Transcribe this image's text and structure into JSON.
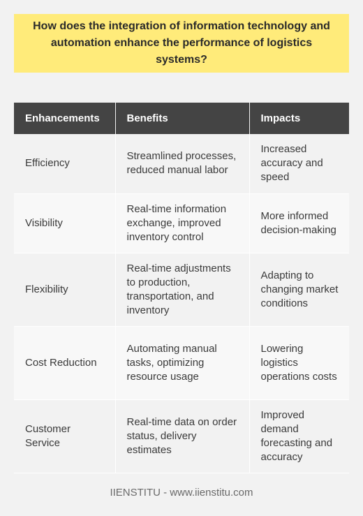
{
  "question": "How does the integration of information technology and automation enhance the performance of logistics systems?",
  "table": {
    "headers": [
      "Enhancements",
      "Benefits",
      "Impacts"
    ],
    "rows": [
      [
        "Efficiency",
        "Streamlined processes, reduced manual labor",
        "Increased accuracy and speed"
      ],
      [
        "Visibility",
        "Real-time information exchange, improved inventory control",
        "More informed decision-making"
      ],
      [
        "Flexibility",
        "Real-time adjustments to production, transportation, and inventory",
        "Adapting to changing market conditions"
      ],
      [
        "Cost Reduction",
        "Automating manual tasks, optimizing resource usage",
        "Lowering logistics operations costs"
      ],
      [
        "Customer Service",
        "Real-time data on order status, delivery estimates",
        "Improved demand forecasting and accuracy"
      ]
    ]
  },
  "footer": "IIENSTITU - www.iienstitu.com",
  "colors": {
    "question_background": "#ffeb7a",
    "header_background": "#444444",
    "page_background": "#f2f2f2"
  }
}
